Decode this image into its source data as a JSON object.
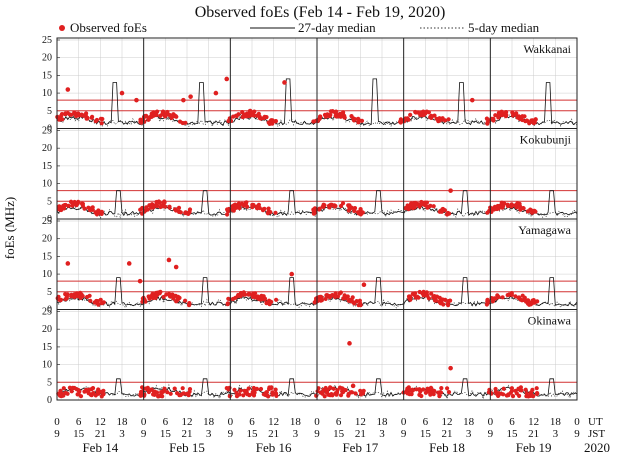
{
  "title": "Observed foEs (Feb 14 - Feb 19, 2020)",
  "legend": {
    "observed": "Observed foEs",
    "median27": "27-day median",
    "median5": "5-day median"
  },
  "colors": {
    "observed": "#e02020",
    "threshold": "#d33333",
    "median27": "#111111",
    "median5": "#333333",
    "grid": "#cccccc",
    "day_separator": "#222222"
  },
  "labels": {
    "ylabel": "foEs (MHz)",
    "ut": "UT",
    "jst": "JST",
    "year": "2020"
  },
  "chart_data": {
    "type": "scatter",
    "title": "Observed foEs (Feb 14 - Feb 19, 2020)",
    "ylabel": "foEs (MHz)",
    "xlabel": "UT / JST",
    "ylim": [
      0,
      25
    ],
    "yticks": [
      "0",
      "5",
      "10",
      "15",
      "20",
      "25"
    ],
    "ut_ticks": [
      "0",
      "6",
      "12",
      "18",
      "0",
      "6",
      "12",
      "18",
      "0",
      "6",
      "12",
      "18",
      "0",
      "6",
      "12",
      "18",
      "0",
      "6",
      "12",
      "18",
      "0",
      "6",
      "12",
      "18",
      "0"
    ],
    "jst_ticks": [
      "9",
      "15",
      "21",
      "3",
      "9",
      "15",
      "21",
      "3",
      "9",
      "15",
      "21",
      "3",
      "9",
      "15",
      "21",
      "3",
      "9",
      "15",
      "21",
      "3",
      "9",
      "15",
      "21",
      "3",
      "9"
    ],
    "days": [
      "Feb 14",
      "Feb 15",
      "Feb 16",
      "Feb 17",
      "Feb 18",
      "Feb 19"
    ],
    "x_range_hours": [
      0,
      144
    ],
    "stations": [
      {
        "name": "Wakkanai",
        "thresholds": [
          5,
          8
        ],
        "outliers": [
          [
            3,
            11
          ],
          [
            18,
            10
          ],
          [
            22,
            8
          ],
          [
            35,
            8
          ],
          [
            37,
            9
          ],
          [
            44,
            10
          ],
          [
            47,
            14
          ],
          [
            63,
            13
          ],
          [
            115,
            8
          ]
        ],
        "bursts": [
          [
            16,
            13
          ],
          [
            40,
            13
          ],
          [
            64,
            14
          ],
          [
            88,
            14
          ],
          [
            112,
            13
          ],
          [
            136,
            13
          ]
        ]
      },
      {
        "name": "Kokubunji",
        "thresholds": [
          5,
          8
        ],
        "outliers": [
          [
            109,
            8
          ]
        ],
        "bursts": [
          [
            17,
            8
          ],
          [
            41,
            8
          ],
          [
            65,
            8
          ],
          [
            89,
            8
          ],
          [
            113,
            8
          ],
          [
            137,
            8
          ]
        ]
      },
      {
        "name": "Yamagawa",
        "thresholds": [
          5,
          8
        ],
        "outliers": [
          [
            3,
            13
          ],
          [
            20,
            13
          ],
          [
            23,
            8
          ],
          [
            31,
            14
          ],
          [
            33,
            12
          ],
          [
            65,
            10
          ],
          [
            85,
            7
          ]
        ],
        "bursts": [
          [
            17,
            9
          ],
          [
            41,
            9
          ],
          [
            65,
            9
          ],
          [
            89,
            9
          ],
          [
            113,
            9
          ],
          [
            137,
            9
          ]
        ]
      },
      {
        "name": "Okinawa",
        "thresholds": [
          5
        ],
        "outliers": [
          [
            81,
            16
          ],
          [
            82,
            4
          ],
          [
            109,
            9
          ]
        ],
        "bursts": [
          [
            17,
            6
          ],
          [
            41,
            6
          ],
          [
            65,
            6
          ],
          [
            89,
            6
          ],
          [
            113,
            6
          ],
          [
            137,
            6
          ]
        ]
      }
    ]
  }
}
